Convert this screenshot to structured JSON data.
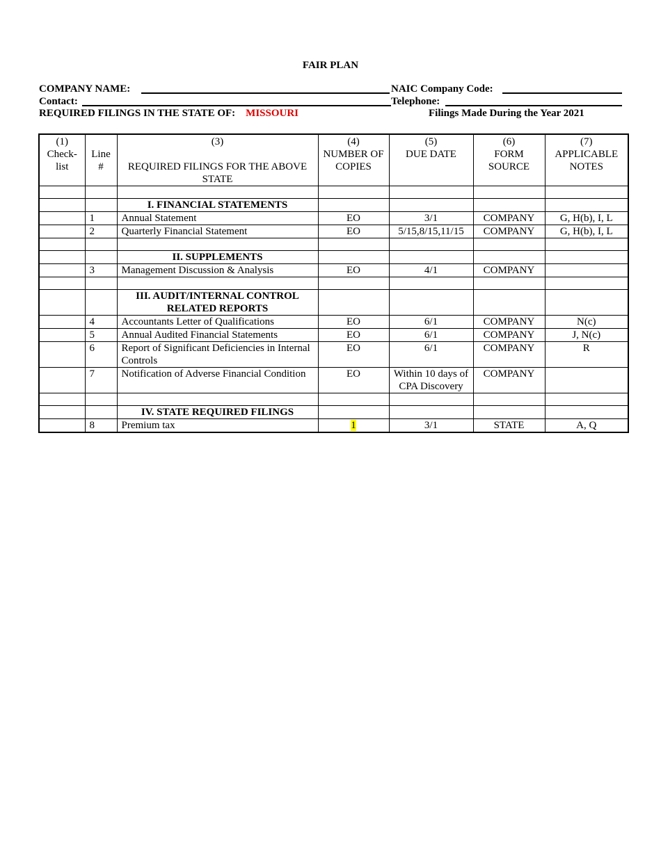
{
  "title": "FAIR PLAN",
  "header": {
    "company_name_label": "COMPANY NAME:",
    "naic_label": "NAIC Company Code:",
    "contact_label": "Contact:",
    "telephone_label": "Telephone:",
    "state_label": "REQUIRED FILINGS IN THE STATE OF:",
    "state": "MISSOURI",
    "year_text": "Filings Made During the Year 2021"
  },
  "columns": [
    {
      "num": "(1)",
      "label": "Check- list"
    },
    {
      "num": "",
      "label": "Line #"
    },
    {
      "num": "(3)",
      "label": "REQUIRED FILINGS FOR THE ABOVE STATE"
    },
    {
      "num": "(4)",
      "label": "NUMBER OF COPIES"
    },
    {
      "num": "(5)",
      "label": "DUE DATE"
    },
    {
      "num": "(6)",
      "label": "FORM SOURCE"
    },
    {
      "num": "(7)",
      "label": "APPLICABLE NOTES"
    }
  ],
  "rows": [
    {
      "type": "blank"
    },
    {
      "type": "section",
      "label": "I.  FINANCIAL STATEMENTS"
    },
    {
      "type": "item",
      "line": "1",
      "filing": "Annual Statement",
      "copies": "EO",
      "due": "3/1",
      "source": "COMPANY",
      "notes": "G, H(b), I,  L"
    },
    {
      "type": "item",
      "line": "2",
      "filing": "Quarterly Financial Statement",
      "copies": "EO",
      "due": "5/15,8/15,11/15",
      "source": "COMPANY",
      "notes": "G, H(b), I,  L"
    },
    {
      "type": "blank"
    },
    {
      "type": "section",
      "label": "II.  SUPPLEMENTS"
    },
    {
      "type": "item",
      "line": "3",
      "filing": "Management Discussion & Analysis",
      "copies": "EO",
      "due": "4/1",
      "source": "COMPANY",
      "notes": ""
    },
    {
      "type": "blank"
    },
    {
      "type": "section",
      "label": "III.  AUDIT/INTERNAL CONTROL RELATED REPORTS"
    },
    {
      "type": "item",
      "line": "4",
      "filing": "Accountants Letter of Qualifications",
      "copies": "EO",
      "due": "6/1",
      "source": "COMPANY",
      "notes": "N(c)"
    },
    {
      "type": "item",
      "line": "5",
      "filing": "Annual Audited Financial Statements",
      "copies": "EO",
      "due": "6/1",
      "source": "COMPANY",
      "notes": "J, N(c)"
    },
    {
      "type": "item",
      "line": "6",
      "filing": "Report of Significant Deficiencies in Internal Controls",
      "copies": "EO",
      "due": "6/1",
      "source": "COMPANY",
      "notes": "R"
    },
    {
      "type": "item",
      "line": "7",
      "filing": "Notification of Adverse Financial Condition",
      "copies": "EO",
      "due": "Within 10 days of CPA Discovery",
      "source": "COMPANY",
      "notes": ""
    },
    {
      "type": "blank"
    },
    {
      "type": "section",
      "label": "IV.  STATE REQUIRED FILINGS"
    },
    {
      "type": "item",
      "line": "8",
      "filing": "Premium tax",
      "copies": "1",
      "copies_highlight": "#ffff00",
      "due": "3/1",
      "source": "STATE",
      "notes": "A, Q"
    }
  ]
}
